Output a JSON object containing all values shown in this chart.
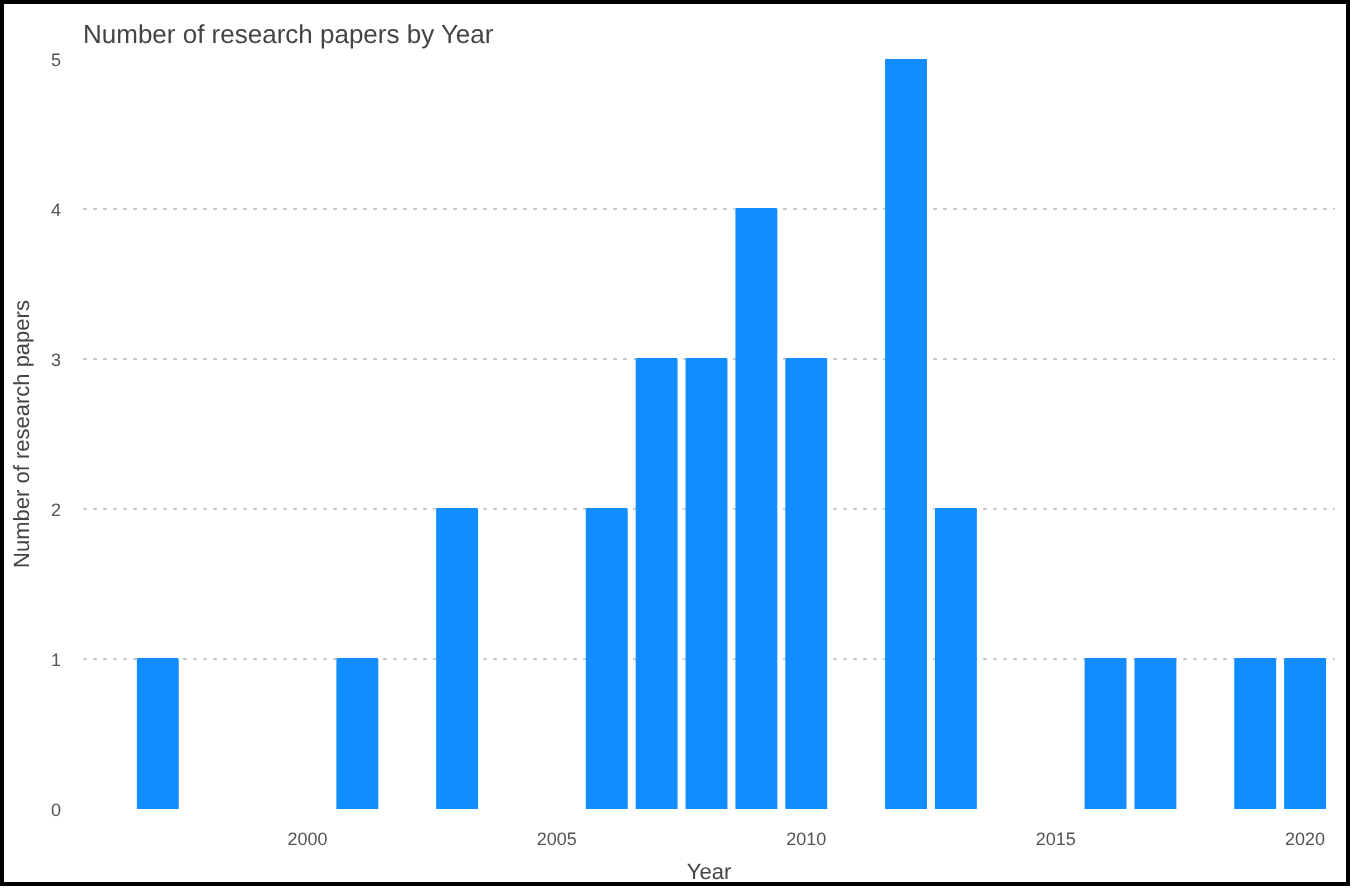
{
  "chart_data": {
    "type": "bar",
    "title": "Number of research papers by Year",
    "xlabel": "Year",
    "ylabel": "Number of research papers",
    "x": [
      1997,
      2001,
      2003,
      2006,
      2007,
      2008,
      2009,
      2010,
      2012,
      2013,
      2016,
      2017,
      2019,
      2020
    ],
    "series": [
      {
        "color": "#118dff",
        "values": [
          1,
          1,
          2,
          2,
          3,
          3,
          4,
          3,
          5,
          2,
          1,
          1,
          1,
          1
        ]
      }
    ],
    "xlim": [
      1995.5,
      2020.6
    ],
    "xticks": [
      2000,
      2005,
      2010,
      2015,
      2020
    ],
    "ylim": [
      0,
      5
    ],
    "yticks": [
      0,
      1,
      2,
      3,
      4,
      5
    ],
    "grid": "y"
  }
}
